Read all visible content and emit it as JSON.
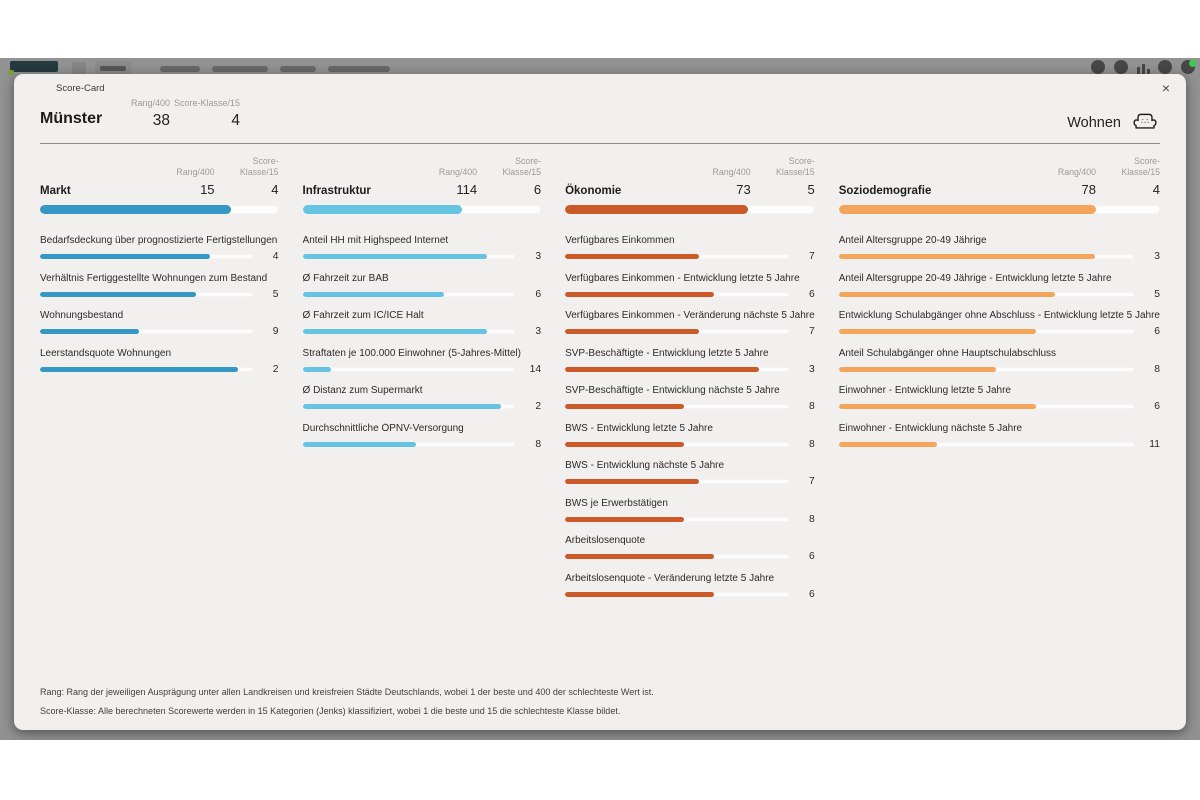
{
  "dialog": {
    "title": "Score-Card",
    "close_label": "×",
    "segment": "Wohnen",
    "segment_icon": "sofa-icon"
  },
  "labels": {
    "rank": "Rang/400",
    "score_class": "Score-Klasse/15"
  },
  "header": {
    "city": "Münster",
    "rank": "38",
    "score_class": "4"
  },
  "categories": [
    {
      "name": "Markt",
      "rank": "15",
      "score_class": 4,
      "color": "#3597c4",
      "items": [
        {
          "label": "Bedarfsdeckung über prognostizierte Fertigstellungen",
          "value": 4
        },
        {
          "label": "Verhältnis Fertiggestellte Wohnungen zum Bestand",
          "value": 5
        },
        {
          "label": "Wohnungsbestand",
          "value": 9
        },
        {
          "label": "Leerstandsquote Wohnungen",
          "value": 2
        }
      ]
    },
    {
      "name": "Infrastruktur",
      "rank": "114",
      "score_class": 6,
      "color": "#66c3e2",
      "items": [
        {
          "label": "Anteil HH mit Highspeed Internet",
          "value": 3
        },
        {
          "label": "Ø Fahrzeit zur BAB",
          "value": 6
        },
        {
          "label": "Ø Fahrzeit zum IC/ICE Halt",
          "value": 3
        },
        {
          "label": "Straftaten je 100.000 Einwohner (5-Jahres-Mittel)",
          "value": 14
        },
        {
          "label": "Ø Distanz zum Supermarkt",
          "value": 2
        },
        {
          "label": "Durchschnittliche ÖPNV-Versorgung",
          "value": 8
        }
      ]
    },
    {
      "name": "Ökonomie",
      "rank": "73",
      "score_class": 5,
      "color": "#cc5a28",
      "items": [
        {
          "label": "Verfügbares Einkommen",
          "value": 7
        },
        {
          "label": "Verfügbares Einkommen - Entwicklung letzte 5 Jahre",
          "value": 6
        },
        {
          "label": "Verfügbares Einkommen - Veränderung nächste 5 Jahre",
          "value": 7
        },
        {
          "label": "SVP-Beschäftigte - Entwicklung letzte 5 Jahre",
          "value": 3
        },
        {
          "label": "SVP-Beschäftigte - Entwicklung nächste 5 Jahre",
          "value": 8
        },
        {
          "label": "BWS - Entwicklung letzte 5 Jahre",
          "value": 8
        },
        {
          "label": "BWS - Entwicklung nächste 5 Jahre",
          "value": 7
        },
        {
          "label": "BWS je Erwerbstätigen",
          "value": 8
        },
        {
          "label": "Arbeitslosenquote",
          "value": 6
        },
        {
          "label": "Arbeitslosenquote - Veränderung letzte 5 Jahre",
          "value": 6
        }
      ]
    },
    {
      "name": "Soziodemografie",
      "rank": "78",
      "score_class": 4,
      "color": "#f3a55c",
      "items": [
        {
          "label": "Anteil Altersgruppe 20-49 Jährige",
          "value": 3
        },
        {
          "label": "Anteil Altersgruppe 20-49 Jährige - Entwicklung letzte 5 Jahre",
          "value": 5
        },
        {
          "label": "Entwicklung Schulabgänger ohne Abschluss - Entwicklung letzte 5 Jahre",
          "value": 6
        },
        {
          "label": "Anteil Schulabgänger ohne Hauptschulabschluss",
          "value": 8
        },
        {
          "label": "Einwohner - Entwicklung letzte 5 Jahre",
          "value": 6
        },
        {
          "label": "Einwohner - Entwicklung nächste 5 Jahre",
          "value": 11
        }
      ]
    }
  ],
  "footnotes": [
    "Rang: Rang der jeweiligen Ausprägung unter allen Landkreisen und kreisfreien Städte Deutschlands, wobei 1 der beste und 400 der schlechteste Wert ist.",
    "Score-Klasse: Alle berechneten Scorewerte werden in 15 Kategorien (Jenks) klassifiziert, wobei 1 die beste und 15 die schlechteste Klasse bildet."
  ],
  "scale": {
    "max_class": 15
  }
}
